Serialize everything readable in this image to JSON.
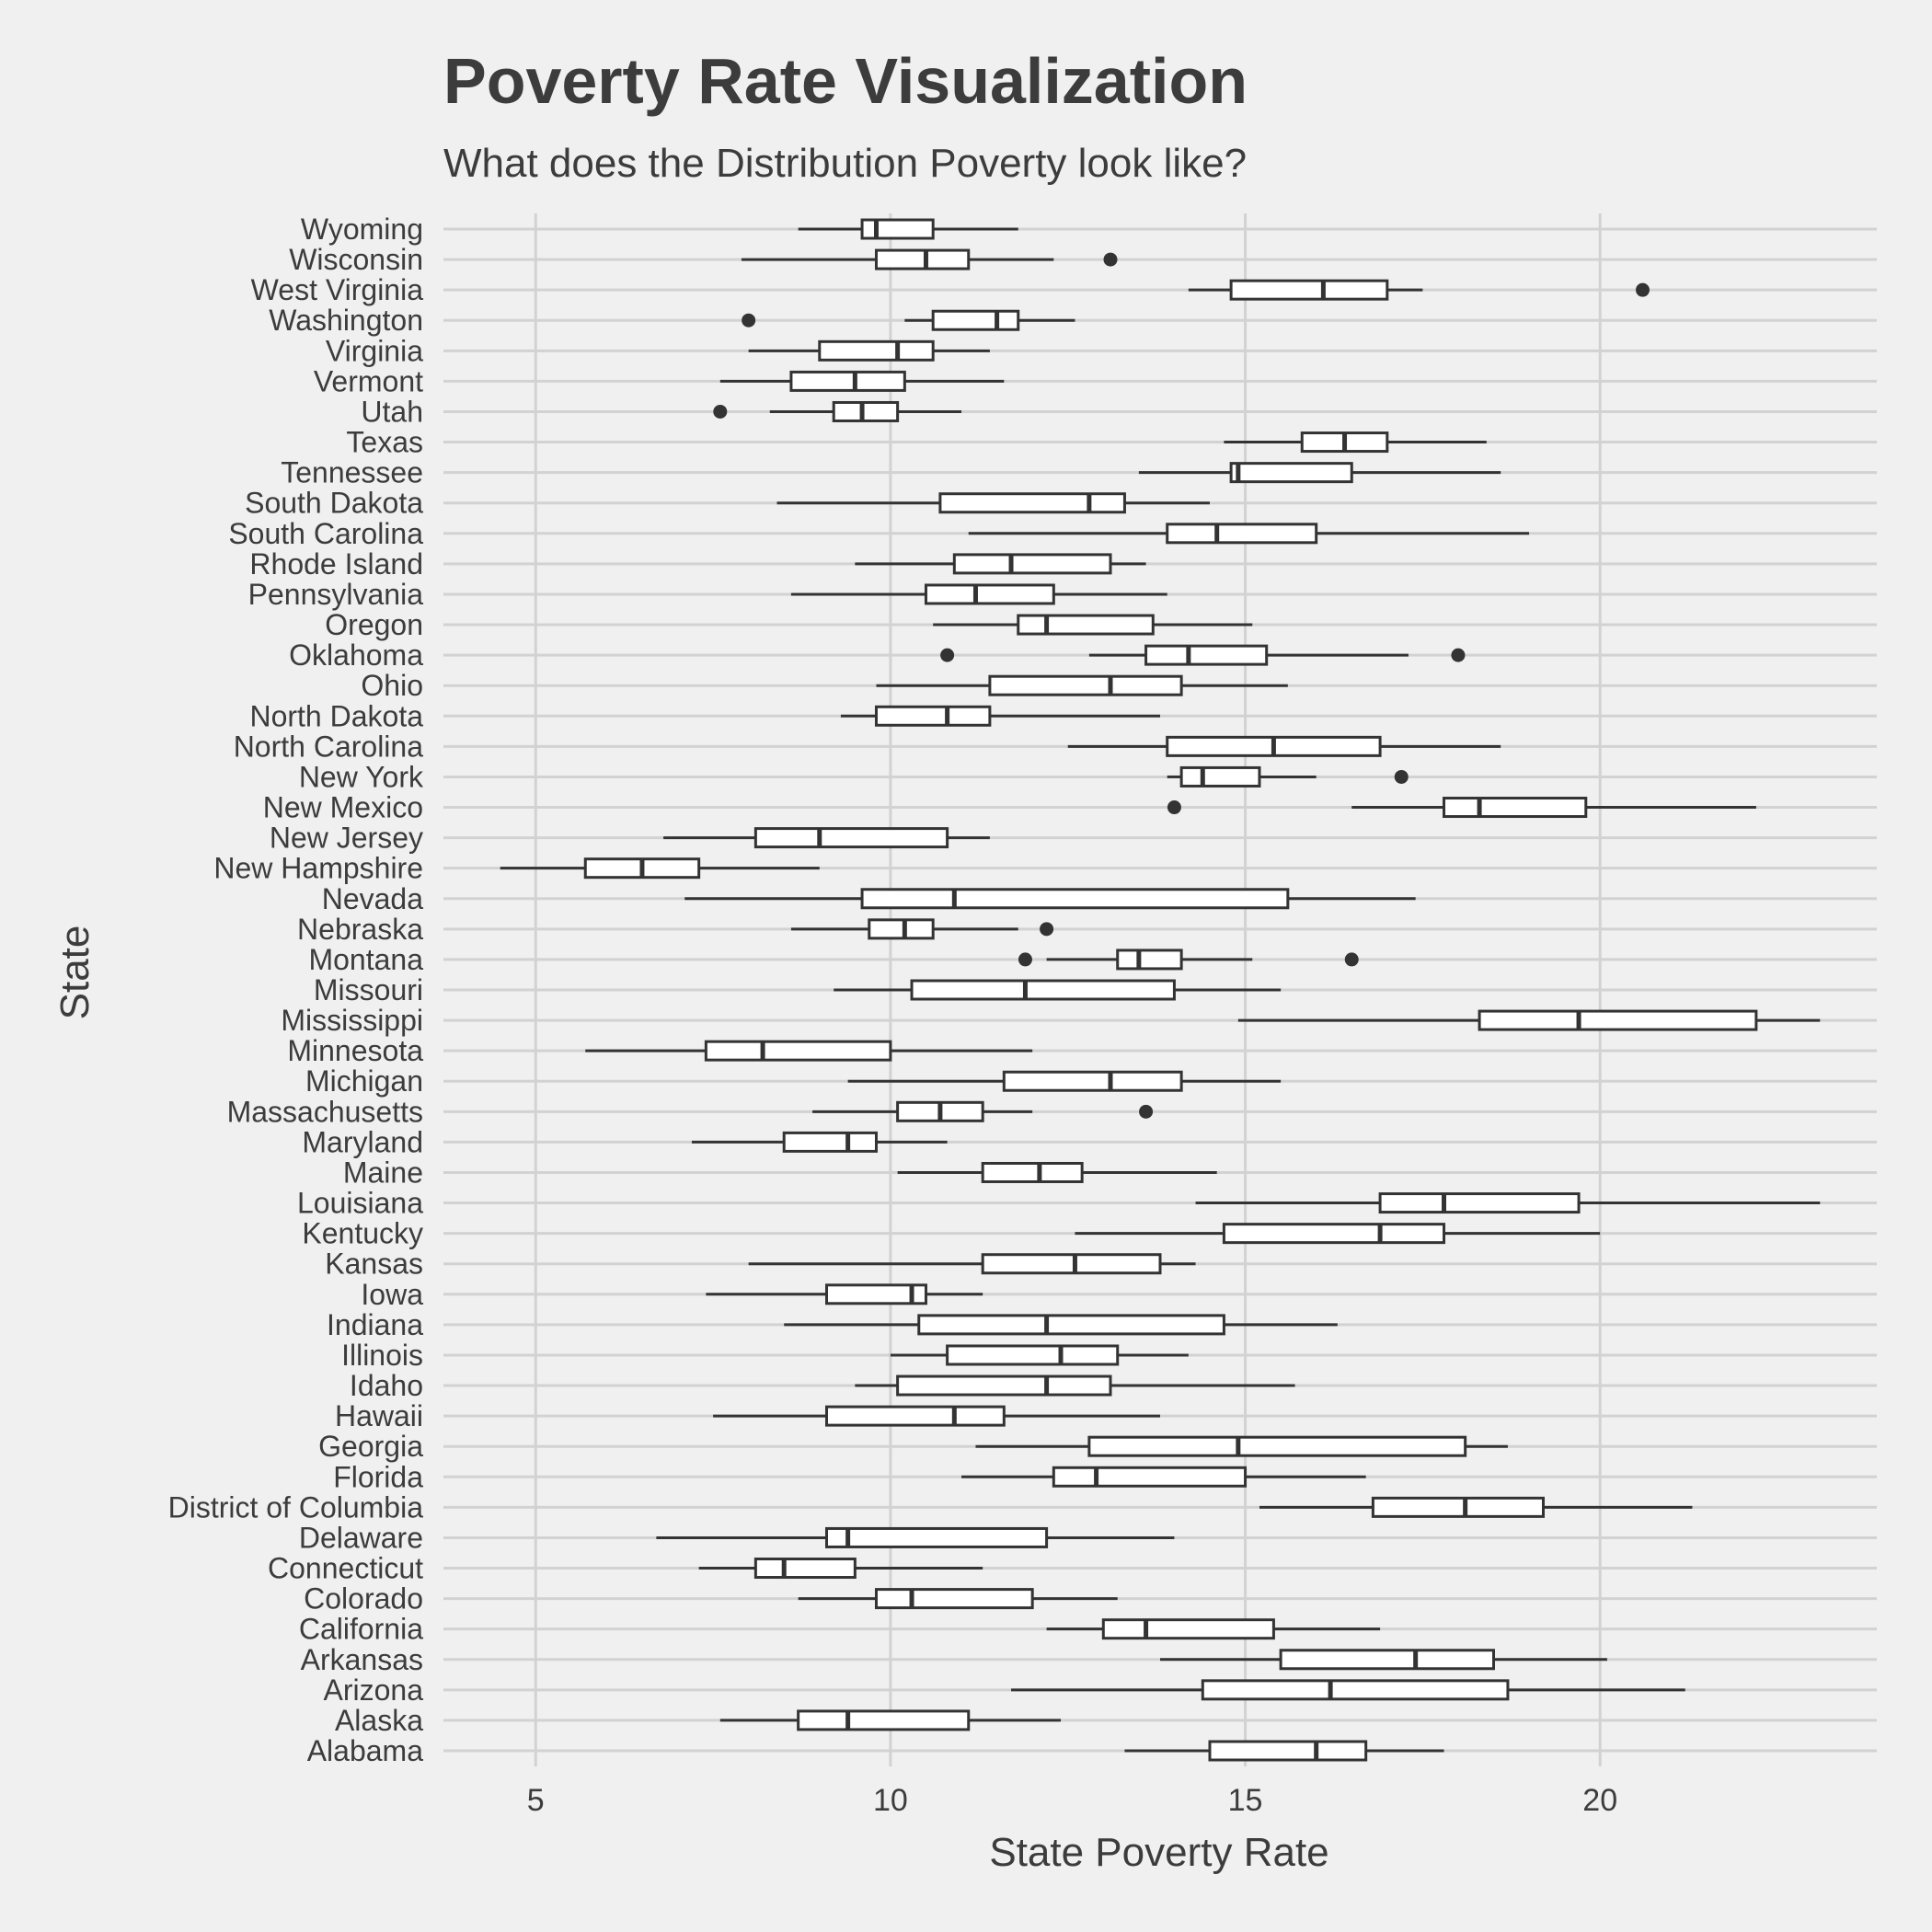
{
  "chart_data": {
    "type": "boxplot",
    "orientation": "horizontal",
    "title": "Poverty Rate Visualization",
    "subtitle": "What does the Distribution Poverty look like?",
    "xlabel": "State Poverty Rate",
    "ylabel": "State",
    "xlim": [
      3.7,
      23.9
    ],
    "x_ticks": [
      5,
      10,
      15,
      20
    ],
    "grid": "on",
    "colors": {
      "background": "#f0f0f0",
      "grid": "#d2d2d2",
      "box_stroke": "#333333",
      "box_fill": "#ffffff",
      "text": "#3c3c3c"
    },
    "categories": [
      "Alabama",
      "Alaska",
      "Arizona",
      "Arkansas",
      "California",
      "Colorado",
      "Connecticut",
      "Delaware",
      "District of Columbia",
      "Florida",
      "Georgia",
      "Hawaii",
      "Idaho",
      "Illinois",
      "Indiana",
      "Iowa",
      "Kansas",
      "Kentucky",
      "Louisiana",
      "Maine",
      "Maryland",
      "Massachusetts",
      "Michigan",
      "Minnesota",
      "Mississippi",
      "Missouri",
      "Montana",
      "Nebraska",
      "Nevada",
      "New Hampshire",
      "New Jersey",
      "New Mexico",
      "New York",
      "North Carolina",
      "North Dakota",
      "Ohio",
      "Oklahoma",
      "Oregon",
      "Pennsylvania",
      "Rhode Island",
      "South Carolina",
      "South Dakota",
      "Tennessee",
      "Texas",
      "Utah",
      "Vermont",
      "Virginia",
      "Washington",
      "West Virginia",
      "Wisconsin",
      "Wyoming"
    ],
    "boxes": [
      {
        "state": "Alabama",
        "whisker_low": 13.3,
        "q1": 14.5,
        "median": 16.0,
        "q3": 16.7,
        "whisker_high": 17.8,
        "outliers": []
      },
      {
        "state": "Alaska",
        "whisker_low": 7.6,
        "q1": 8.7,
        "median": 9.4,
        "q3": 11.1,
        "whisker_high": 12.4,
        "outliers": []
      },
      {
        "state": "Arizona",
        "whisker_low": 11.7,
        "q1": 14.4,
        "median": 16.2,
        "q3": 18.7,
        "whisker_high": 21.2,
        "outliers": []
      },
      {
        "state": "Arkansas",
        "whisker_low": 13.8,
        "q1": 15.5,
        "median": 17.4,
        "q3": 18.5,
        "whisker_high": 20.1,
        "outliers": []
      },
      {
        "state": "California",
        "whisker_low": 12.2,
        "q1": 13.0,
        "median": 13.6,
        "q3": 15.4,
        "whisker_high": 16.9,
        "outliers": []
      },
      {
        "state": "Colorado",
        "whisker_low": 8.7,
        "q1": 9.8,
        "median": 10.3,
        "q3": 12.0,
        "whisker_high": 13.2,
        "outliers": []
      },
      {
        "state": "Connecticut",
        "whisker_low": 7.3,
        "q1": 8.1,
        "median": 8.5,
        "q3": 9.5,
        "whisker_high": 11.3,
        "outliers": []
      },
      {
        "state": "Delaware",
        "whisker_low": 6.7,
        "q1": 9.1,
        "median": 9.4,
        "q3": 12.2,
        "whisker_high": 14.0,
        "outliers": []
      },
      {
        "state": "District of Columbia",
        "whisker_low": 15.2,
        "q1": 16.8,
        "median": 18.1,
        "q3": 19.2,
        "whisker_high": 21.3,
        "outliers": []
      },
      {
        "state": "Florida",
        "whisker_low": 11.0,
        "q1": 12.3,
        "median": 12.9,
        "q3": 15.0,
        "whisker_high": 16.7,
        "outliers": []
      },
      {
        "state": "Georgia",
        "whisker_low": 11.2,
        "q1": 12.8,
        "median": 14.9,
        "q3": 18.1,
        "whisker_high": 18.7,
        "outliers": []
      },
      {
        "state": "Hawaii",
        "whisker_low": 7.5,
        "q1": 9.1,
        "median": 10.9,
        "q3": 11.6,
        "whisker_high": 13.8,
        "outliers": []
      },
      {
        "state": "Idaho",
        "whisker_low": 9.5,
        "q1": 10.1,
        "median": 12.2,
        "q3": 13.1,
        "whisker_high": 15.7,
        "outliers": []
      },
      {
        "state": "Illinois",
        "whisker_low": 10.0,
        "q1": 10.8,
        "median": 12.4,
        "q3": 13.2,
        "whisker_high": 14.2,
        "outliers": []
      },
      {
        "state": "Indiana",
        "whisker_low": 8.5,
        "q1": 10.4,
        "median": 12.2,
        "q3": 14.7,
        "whisker_high": 16.3,
        "outliers": []
      },
      {
        "state": "Iowa",
        "whisker_low": 7.4,
        "q1": 9.1,
        "median": 10.3,
        "q3": 10.5,
        "whisker_high": 11.3,
        "outliers": []
      },
      {
        "state": "Kansas",
        "whisker_low": 8.0,
        "q1": 11.3,
        "median": 12.6,
        "q3": 13.8,
        "whisker_high": 14.3,
        "outliers": []
      },
      {
        "state": "Kentucky",
        "whisker_low": 12.6,
        "q1": 14.7,
        "median": 16.9,
        "q3": 17.8,
        "whisker_high": 20.0,
        "outliers": []
      },
      {
        "state": "Louisiana",
        "whisker_low": 14.3,
        "q1": 16.9,
        "median": 17.8,
        "q3": 19.7,
        "whisker_high": 23.1,
        "outliers": []
      },
      {
        "state": "Maine",
        "whisker_low": 10.1,
        "q1": 11.3,
        "median": 12.1,
        "q3": 12.7,
        "whisker_high": 14.6,
        "outliers": []
      },
      {
        "state": "Maryland",
        "whisker_low": 7.2,
        "q1": 8.5,
        "median": 9.4,
        "q3": 9.8,
        "whisker_high": 10.8,
        "outliers": []
      },
      {
        "state": "Massachusetts",
        "whisker_low": 8.9,
        "q1": 10.1,
        "median": 10.7,
        "q3": 11.3,
        "whisker_high": 12.0,
        "outliers": [
          13.6
        ]
      },
      {
        "state": "Michigan",
        "whisker_low": 9.4,
        "q1": 11.6,
        "median": 13.1,
        "q3": 14.1,
        "whisker_high": 15.5,
        "outliers": []
      },
      {
        "state": "Minnesota",
        "whisker_low": 5.7,
        "q1": 7.4,
        "median": 8.2,
        "q3": 10.0,
        "whisker_high": 12.0,
        "outliers": []
      },
      {
        "state": "Mississippi",
        "whisker_low": 14.9,
        "q1": 18.3,
        "median": 19.7,
        "q3": 22.2,
        "whisker_high": 23.1,
        "outliers": []
      },
      {
        "state": "Missouri",
        "whisker_low": 9.2,
        "q1": 10.3,
        "median": 11.9,
        "q3": 14.0,
        "whisker_high": 15.5,
        "outliers": []
      },
      {
        "state": "Montana",
        "whisker_low": 12.2,
        "q1": 13.2,
        "median": 13.5,
        "q3": 14.1,
        "whisker_high": 15.1,
        "outliers": [
          11.9,
          16.5
        ]
      },
      {
        "state": "Nebraska",
        "whisker_low": 8.6,
        "q1": 9.7,
        "median": 10.2,
        "q3": 10.6,
        "whisker_high": 11.8,
        "outliers": [
          12.2
        ]
      },
      {
        "state": "Nevada",
        "whisker_low": 7.1,
        "q1": 9.6,
        "median": 10.9,
        "q3": 15.6,
        "whisker_high": 17.4,
        "outliers": []
      },
      {
        "state": "New Hampshire",
        "whisker_low": 4.5,
        "q1": 5.7,
        "median": 6.5,
        "q3": 7.3,
        "whisker_high": 9.0,
        "outliers": []
      },
      {
        "state": "New Jersey",
        "whisker_low": 6.8,
        "q1": 8.1,
        "median": 9.0,
        "q3": 10.8,
        "whisker_high": 11.4,
        "outliers": []
      },
      {
        "state": "New Mexico",
        "whisker_low": 16.5,
        "q1": 17.8,
        "median": 18.3,
        "q3": 19.8,
        "whisker_high": 22.2,
        "outliers": [
          14.0
        ]
      },
      {
        "state": "New York",
        "whisker_low": 13.9,
        "q1": 14.1,
        "median": 14.4,
        "q3": 15.2,
        "whisker_high": 16.0,
        "outliers": [
          17.2
        ]
      },
      {
        "state": "North Carolina",
        "whisker_low": 12.5,
        "q1": 13.9,
        "median": 15.4,
        "q3": 16.9,
        "whisker_high": 18.6,
        "outliers": []
      },
      {
        "state": "North Dakota",
        "whisker_low": 9.3,
        "q1": 9.8,
        "median": 10.8,
        "q3": 11.4,
        "whisker_high": 13.8,
        "outliers": []
      },
      {
        "state": "Ohio",
        "whisker_low": 9.8,
        "q1": 11.4,
        "median": 13.1,
        "q3": 14.1,
        "whisker_high": 15.6,
        "outliers": []
      },
      {
        "state": "Oklahoma",
        "whisker_low": 12.8,
        "q1": 13.6,
        "median": 14.2,
        "q3": 15.3,
        "whisker_high": 17.3,
        "outliers": [
          10.8,
          18.0
        ]
      },
      {
        "state": "Oregon",
        "whisker_low": 10.6,
        "q1": 11.8,
        "median": 12.2,
        "q3": 13.7,
        "whisker_high": 15.1,
        "outliers": []
      },
      {
        "state": "Pennsylvania",
        "whisker_low": 8.6,
        "q1": 10.5,
        "median": 11.2,
        "q3": 12.3,
        "whisker_high": 13.9,
        "outliers": []
      },
      {
        "state": "Rhode Island",
        "whisker_low": 9.5,
        "q1": 10.9,
        "median": 11.7,
        "q3": 13.1,
        "whisker_high": 13.6,
        "outliers": []
      },
      {
        "state": "South Carolina",
        "whisker_low": 11.1,
        "q1": 13.9,
        "median": 14.6,
        "q3": 16.0,
        "whisker_high": 19.0,
        "outliers": []
      },
      {
        "state": "South Dakota",
        "whisker_low": 8.4,
        "q1": 10.7,
        "median": 12.8,
        "q3": 13.3,
        "whisker_high": 14.5,
        "outliers": []
      },
      {
        "state": "Tennessee",
        "whisker_low": 13.5,
        "q1": 14.8,
        "median": 14.9,
        "q3": 16.5,
        "whisker_high": 18.6,
        "outliers": []
      },
      {
        "state": "Texas",
        "whisker_low": 14.7,
        "q1": 15.8,
        "median": 16.4,
        "q3": 17.0,
        "whisker_high": 18.4,
        "outliers": []
      },
      {
        "state": "Utah",
        "whisker_low": 8.3,
        "q1": 9.2,
        "median": 9.6,
        "q3": 10.1,
        "whisker_high": 11.0,
        "outliers": [
          7.6
        ]
      },
      {
        "state": "Vermont",
        "whisker_low": 7.6,
        "q1": 8.6,
        "median": 9.5,
        "q3": 10.2,
        "whisker_high": 11.6,
        "outliers": []
      },
      {
        "state": "Virginia",
        "whisker_low": 8.0,
        "q1": 9.0,
        "median": 10.1,
        "q3": 10.6,
        "whisker_high": 11.4,
        "outliers": []
      },
      {
        "state": "Washington",
        "whisker_low": 10.2,
        "q1": 10.6,
        "median": 11.5,
        "q3": 11.8,
        "whisker_high": 12.6,
        "outliers": [
          8.0
        ]
      },
      {
        "state": "West Virginia",
        "whisker_low": 14.2,
        "q1": 14.8,
        "median": 16.1,
        "q3": 17.0,
        "whisker_high": 17.5,
        "outliers": [
          20.6
        ]
      },
      {
        "state": "Wisconsin",
        "whisker_low": 7.9,
        "q1": 9.8,
        "median": 10.5,
        "q3": 11.1,
        "whisker_high": 12.3,
        "outliers": [
          13.1
        ]
      },
      {
        "state": "Wyoming",
        "whisker_low": 8.7,
        "q1": 9.6,
        "median": 9.8,
        "q3": 10.6,
        "whisker_high": 11.8,
        "outliers": []
      }
    ]
  }
}
